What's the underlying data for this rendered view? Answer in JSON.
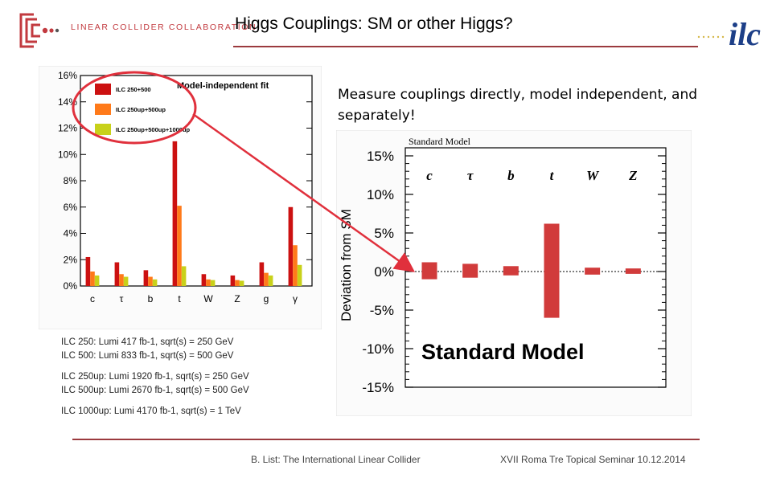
{
  "header": {
    "org_name": "LINEAR COLLIDER COLLABORATION",
    "title": "Higgs Couplings: SM or other Higgs?",
    "ilc_logo_text": "ilc"
  },
  "intro_text": "Measure couplings directly, model independent, and separately!",
  "lumi_notes": [
    "ILC 250: Lumi 417 fb-1, sqrt(s) = 250 GeV",
    "ILC 500: Lumi 833 fb-1, sqrt(s) = 500 GeV",
    "ILC 250up: Lumi 1920 fb-1, sqrt(s) = 250 GeV",
    "ILC 500up: Lumi 2670 fb-1, sqrt(s) = 500 GeV",
    "ILC 1000up: Lumi 4170 fb-1, sqrt(s) = 1 TeV"
  ],
  "footer": {
    "left": "B. List: The International Linear Collider",
    "right": "XVII Roma Tre Topical Seminar 10.12.2014"
  },
  "colors": {
    "accent": "#9b3a3e",
    "series_red": "#cc1111",
    "series_orange": "#ff7a1a",
    "series_yellow": "#c8d11a",
    "sm_bar": "#d13b3b",
    "highlight": "#e0303c"
  },
  "chart_data": [
    {
      "type": "bar",
      "title": "Model-independent fit",
      "categories": [
        "c",
        "τ",
        "b",
        "t",
        "W",
        "Z",
        "g",
        "γ"
      ],
      "yticks": [
        "0%",
        "2%",
        "4%",
        "6%",
        "8%",
        "10%",
        "12%",
        "14%",
        "16%"
      ],
      "ylim": [
        0,
        16
      ],
      "series": [
        {
          "name": "ILC 250+500",
          "color": "#cc1111",
          "values": [
            2.2,
            1.8,
            1.2,
            11.0,
            0.9,
            0.8,
            1.8,
            6.0
          ]
        },
        {
          "name": "ILC 250up+500up",
          "color": "#ff7a1a",
          "values": [
            1.1,
            0.9,
            0.7,
            6.1,
            0.5,
            0.45,
            1.0,
            3.1
          ]
        },
        {
          "name": "ILC 250up+500up+1000up",
          "color": "#c8d11a",
          "values": [
            0.8,
            0.7,
            0.5,
            1.5,
            0.45,
            0.4,
            0.8,
            1.6
          ]
        }
      ]
    },
    {
      "type": "bar",
      "title": "Standard Model",
      "overlay_label": "Standard Model",
      "ylabel": "Deviation from SM",
      "categories": [
        "c",
        "τ",
        "b",
        "t",
        "W",
        "Z"
      ],
      "yticks": [
        "15%",
        "10%",
        "5%",
        "0%",
        "-5%",
        "-10%",
        "-15%"
      ],
      "ylim": [
        -15,
        15
      ],
      "bars": [
        {
          "label": "c",
          "low": -1.0,
          "high": 1.2
        },
        {
          "label": "τ",
          "low": -0.8,
          "high": 1.0
        },
        {
          "label": "b",
          "low": -0.5,
          "high": 0.7
        },
        {
          "label": "t",
          "low": -6.0,
          "high": 6.2
        },
        {
          "label": "W",
          "low": -0.4,
          "high": 0.5
        },
        {
          "label": "Z",
          "low": -0.3,
          "high": 0.4
        }
      ]
    }
  ]
}
